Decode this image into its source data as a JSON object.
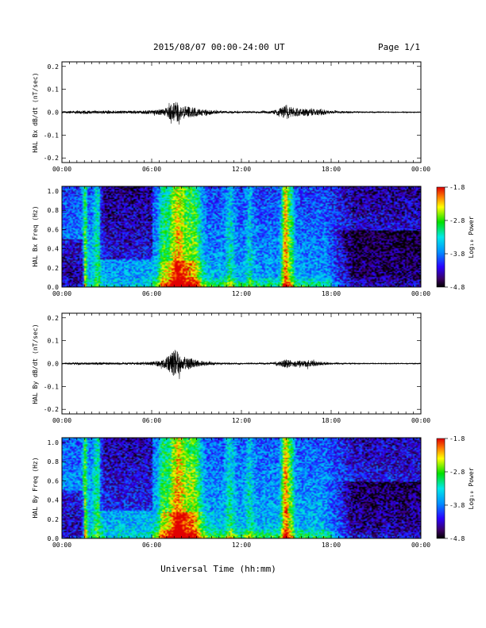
{
  "header": {
    "title": "2015/08/07  00:00-24:00 UT",
    "page": "Page 1/1"
  },
  "footer": {
    "xlabel": "Universal Time (hh:mm)"
  },
  "colorbar": {
    "label": "Log₁₀ Power",
    "ticks": [
      "-1.8",
      "-2.8",
      "-3.8",
      "-4.8"
    ],
    "range": [
      -4.8,
      -1.8
    ]
  },
  "chart_data": [
    {
      "type": "line",
      "ylabel": "HAL Bx dB/dt (nT/sec)",
      "x_ticks": [
        "00:00",
        "06:00",
        "12:00",
        "18:00",
        "00:00"
      ],
      "y_ticks": [
        "0.2",
        "0.1",
        "0.0",
        "-0.1",
        "-0.2"
      ],
      "ylim": [
        -0.22,
        0.22
      ],
      "xlim_hours": [
        0,
        24
      ],
      "envelope": {
        "hours": [
          0,
          1.5,
          2,
          3,
          4,
          5,
          6,
          6.8,
          7.3,
          7.6,
          8,
          8.5,
          9,
          9.5,
          10,
          11,
          12,
          13,
          14,
          14.7,
          15,
          15.3,
          16,
          16.5,
          17,
          17.3,
          18,
          20,
          22,
          24
        ],
        "amplitude": [
          0.004,
          0.008,
          0.007,
          0.007,
          0.006,
          0.006,
          0.009,
          0.014,
          0.035,
          0.05,
          0.03,
          0.025,
          0.018,
          0.012,
          0.008,
          0.005,
          0.004,
          0.004,
          0.006,
          0.02,
          0.035,
          0.022,
          0.015,
          0.017,
          0.012,
          0.015,
          0.006,
          0.003,
          0.002,
          0.002
        ]
      }
    },
    {
      "type": "heatmap",
      "ylabel": "HAL Bx Freq (Hz)",
      "x_ticks": [
        "00:00",
        "06:00",
        "12:00",
        "18:00",
        "00:00"
      ],
      "y_ticks": [
        "1.0",
        "0.8",
        "0.6",
        "0.4",
        "0.2",
        "0.0"
      ],
      "ylim": [
        0,
        1.05
      ],
      "zlim": [
        -4.8,
        -1.8
      ],
      "xlim_hours": [
        0,
        24
      ]
    },
    {
      "type": "line",
      "ylabel": "HAL By dB/dt (nT/sec)",
      "x_ticks": [
        "00:00",
        "06:00",
        "12:00",
        "18:00",
        "00:00"
      ],
      "y_ticks": [
        "0.2",
        "0.1",
        "0.0",
        "-0.1",
        "-0.2"
      ],
      "ylim": [
        -0.22,
        0.22
      ],
      "xlim_hours": [
        0,
        24
      ],
      "envelope": {
        "hours": [
          0,
          1.5,
          2,
          3,
          4,
          5,
          6,
          6.8,
          7.3,
          7.6,
          8,
          8.5,
          9,
          9.5,
          10,
          11,
          12,
          13,
          14,
          14.7,
          15,
          15.3,
          16,
          16.5,
          17,
          17.3,
          18,
          20,
          22,
          24
        ],
        "amplitude": [
          0.003,
          0.005,
          0.005,
          0.005,
          0.004,
          0.005,
          0.008,
          0.018,
          0.045,
          0.065,
          0.03,
          0.028,
          0.015,
          0.01,
          0.007,
          0.004,
          0.003,
          0.003,
          0.005,
          0.012,
          0.02,
          0.015,
          0.013,
          0.016,
          0.01,
          0.008,
          0.004,
          0.002,
          0.002,
          0.002
        ]
      }
    },
    {
      "type": "heatmap",
      "ylabel": "HAL By Freq (Hz)",
      "x_ticks": [
        "00:00",
        "06:00",
        "12:00",
        "18:00",
        "00:00"
      ],
      "y_ticks": [
        "1.0",
        "0.8",
        "0.6",
        "0.4",
        "0.2",
        "0.0"
      ],
      "ylim": [
        0,
        1.05
      ],
      "zlim": [
        -4.8,
        -1.8
      ],
      "xlim_hours": [
        0,
        24
      ]
    }
  ]
}
